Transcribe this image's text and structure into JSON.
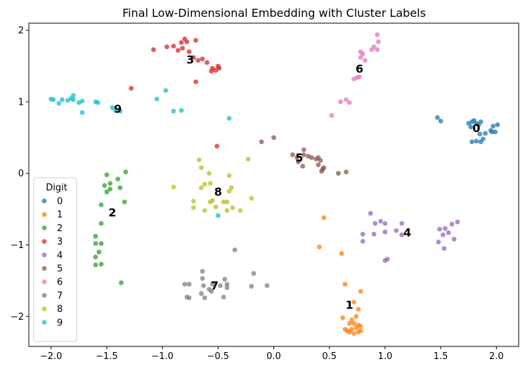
{
  "chart_data": {
    "type": "scatter",
    "title": "Final Low-Dimensional Embedding with Cluster Labels",
    "xlabel": "",
    "ylabel": "",
    "xlim": [
      -2.2,
      2.2
    ],
    "ylim": [
      -2.42,
      2.1
    ],
    "xticks": [
      -2.0,
      -1.5,
      -1.0,
      -0.5,
      0.0,
      0.5,
      1.0,
      1.5,
      2.0
    ],
    "yticks": [
      -2,
      -1,
      0,
      1,
      2
    ],
    "xtick_labels": [
      "−2.0",
      "−1.5",
      "−1.0",
      "−0.5",
      "0.0",
      "0.5",
      "1.0",
      "1.5",
      "2.0"
    ],
    "ytick_labels": [
      "−2",
      "−1",
      "0",
      "1",
      "2"
    ],
    "grid": false,
    "legend": {
      "title": "Digit",
      "placement": "lower-left",
      "entries": [
        "0",
        "1",
        "2",
        "3",
        "4",
        "5",
        "6",
        "7",
        "8",
        "9"
      ]
    },
    "series": [
      {
        "name": "0",
        "color": "#1f77b4",
        "label_pos": [
          1.82,
          0.62
        ],
        "points": [
          [
            1.47,
            0.78
          ],
          [
            1.5,
            0.73
          ],
          [
            1.75,
            0.7
          ],
          [
            1.77,
            0.65
          ],
          [
            1.78,
            0.72
          ],
          [
            1.8,
            0.74
          ],
          [
            1.82,
            0.7
          ],
          [
            1.84,
            0.68
          ],
          [
            1.86,
            0.72
          ],
          [
            1.78,
            0.44
          ],
          [
            1.82,
            0.45
          ],
          [
            1.86,
            0.44
          ],
          [
            1.88,
            0.48
          ],
          [
            1.9,
            0.56
          ],
          [
            1.95,
            0.6
          ],
          [
            1.97,
            0.66
          ],
          [
            1.99,
            0.58
          ],
          [
            2.01,
            0.68
          ],
          [
            1.96,
            0.58
          ],
          [
            1.85,
            0.55
          ]
        ]
      },
      {
        "name": "1",
        "color": "#ff7f0e",
        "label_pos": [
          0.68,
          -1.85
        ],
        "points": [
          [
            0.45,
            -0.62
          ],
          [
            0.41,
            -1.03
          ],
          [
            0.61,
            -1.12
          ],
          [
            0.64,
            -1.55
          ],
          [
            0.78,
            -1.65
          ],
          [
            0.72,
            -1.8
          ],
          [
            0.76,
            -1.9
          ],
          [
            0.62,
            -2.02
          ],
          [
            0.7,
            -2.05
          ],
          [
            0.74,
            -2.0
          ],
          [
            0.68,
            -2.1
          ],
          [
            0.72,
            -2.1
          ],
          [
            0.76,
            -2.12
          ],
          [
            0.64,
            -2.18
          ],
          [
            0.66,
            -2.2
          ],
          [
            0.7,
            -2.18
          ],
          [
            0.74,
            -2.16
          ],
          [
            0.78,
            -2.2
          ],
          [
            0.68,
            -2.22
          ],
          [
            0.72,
            -2.24
          ],
          [
            0.76,
            -2.22
          ],
          [
            0.78,
            -2.14
          ]
        ]
      },
      {
        "name": "2",
        "color": "#2ca02c",
        "label_pos": [
          -1.45,
          -0.56
        ],
        "points": [
          [
            -1.33,
            0.02
          ],
          [
            -1.4,
            -0.08
          ],
          [
            -1.5,
            -0.02
          ],
          [
            -1.38,
            -0.2
          ],
          [
            -1.47,
            -0.14
          ],
          [
            -1.52,
            -0.17
          ],
          [
            -1.47,
            -0.22
          ],
          [
            -1.5,
            -0.26
          ],
          [
            -1.34,
            -0.4
          ],
          [
            -1.55,
            -0.44
          ],
          [
            -1.55,
            -0.7
          ],
          [
            -1.6,
            -0.88
          ],
          [
            -1.55,
            -0.98
          ],
          [
            -1.6,
            -0.98
          ],
          [
            -1.57,
            -1.1
          ],
          [
            -1.6,
            -1.17
          ],
          [
            -1.6,
            -1.28
          ],
          [
            -1.55,
            -1.27
          ],
          [
            -1.37,
            -1.53
          ]
        ]
      },
      {
        "name": "3",
        "color": "#d62728",
        "label_pos": [
          -0.75,
          1.58
        ],
        "points": [
          [
            -0.83,
            1.83
          ],
          [
            -0.78,
            1.84
          ],
          [
            -0.7,
            1.86
          ],
          [
            -0.8,
            1.88
          ],
          [
            -0.9,
            1.78
          ],
          [
            -0.86,
            1.72
          ],
          [
            -0.82,
            1.75
          ],
          [
            -0.96,
            1.77
          ],
          [
            -1.08,
            1.73
          ],
          [
            -0.76,
            1.7
          ],
          [
            -0.72,
            1.62
          ],
          [
            -0.68,
            1.58
          ],
          [
            -0.64,
            1.6
          ],
          [
            -0.6,
            1.55
          ],
          [
            -0.55,
            1.47
          ],
          [
            -0.5,
            1.5
          ],
          [
            -0.52,
            1.44
          ],
          [
            -0.56,
            1.43
          ],
          [
            -0.49,
            1.47
          ],
          [
            -0.7,
            1.28
          ],
          [
            -1.28,
            1.19
          ],
          [
            -0.51,
            0.38
          ]
        ]
      },
      {
        "name": "4",
        "color": "#9467bd",
        "label_pos": [
          1.2,
          -0.84
        ],
        "points": [
          [
            0.87,
            -0.56
          ],
          [
            0.91,
            -0.7
          ],
          [
            0.96,
            -0.67
          ],
          [
            1.0,
            -0.7
          ],
          [
            0.8,
            -0.85
          ],
          [
            0.8,
            -0.95
          ],
          [
            0.9,
            -0.85
          ],
          [
            1.0,
            -0.82
          ],
          [
            1.1,
            -0.8
          ],
          [
            1.15,
            -0.7
          ],
          [
            1.15,
            -0.86
          ],
          [
            1.02,
            -1.2
          ],
          [
            1.0,
            -1.22
          ],
          [
            1.49,
            -0.78
          ],
          [
            1.54,
            -0.77
          ],
          [
            1.57,
            -0.83
          ],
          [
            1.6,
            -0.71
          ],
          [
            1.65,
            -0.68
          ],
          [
            1.52,
            -0.86
          ],
          [
            1.53,
            -1.05
          ],
          [
            1.62,
            -0.92
          ],
          [
            1.48,
            -0.96
          ]
        ]
      },
      {
        "name": "5",
        "color": "#8c564b",
        "label_pos": [
          0.23,
          0.21
        ],
        "points": [
          [
            0.0,
            0.5
          ],
          [
            -0.11,
            0.44
          ],
          [
            0.17,
            0.26
          ],
          [
            0.21,
            0.22
          ],
          [
            0.27,
            0.26
          ],
          [
            0.27,
            0.33
          ],
          [
            0.31,
            0.24
          ],
          [
            0.34,
            0.22
          ],
          [
            0.38,
            0.2
          ],
          [
            0.4,
            0.22
          ],
          [
            0.42,
            0.18
          ],
          [
            0.4,
            0.12
          ],
          [
            0.44,
            0.06
          ],
          [
            0.45,
            0.08
          ],
          [
            0.43,
            0.03
          ],
          [
            0.58,
            0.0
          ],
          [
            0.65,
            0.02
          ],
          [
            0.22,
            0.16
          ],
          [
            0.26,
            0.1
          ]
        ]
      },
      {
        "name": "6",
        "color": "#e377c2",
        "label_pos": [
          0.77,
          1.45
        ],
        "points": [
          [
            0.52,
            0.81
          ],
          [
            0.6,
            1.0
          ],
          [
            0.65,
            1.03
          ],
          [
            0.68,
            0.99
          ],
          [
            0.72,
            1.32
          ],
          [
            0.75,
            1.34
          ],
          [
            0.77,
            1.35
          ],
          [
            0.78,
            1.62
          ],
          [
            0.8,
            1.67
          ],
          [
            0.78,
            1.7
          ],
          [
            0.82,
            1.58
          ],
          [
            0.88,
            1.73
          ],
          [
            0.9,
            1.77
          ],
          [
            0.93,
            1.73
          ],
          [
            0.93,
            1.94
          ],
          [
            0.94,
            1.84
          ]
        ]
      },
      {
        "name": "7",
        "color": "#7f7f7f",
        "label_pos": [
          -0.53,
          -1.58
        ],
        "points": [
          [
            -0.8,
            -1.55
          ],
          [
            -0.76,
            -1.55
          ],
          [
            -0.78,
            -1.73
          ],
          [
            -0.76,
            -1.74
          ],
          [
            -0.64,
            -1.47
          ],
          [
            -0.63,
            -1.57
          ],
          [
            -0.65,
            -1.68
          ],
          [
            -0.62,
            -1.74
          ],
          [
            -0.64,
            -1.37
          ],
          [
            -0.55,
            -1.55
          ],
          [
            -0.48,
            -1.57
          ],
          [
            -0.44,
            -1.48
          ],
          [
            -0.42,
            -1.55
          ],
          [
            -0.42,
            -1.6
          ],
          [
            -0.45,
            -1.73
          ],
          [
            -0.35,
            -1.07
          ],
          [
            -0.2,
            -1.58
          ],
          [
            -0.18,
            -1.4
          ],
          [
            -0.06,
            -1.57
          ],
          [
            -0.58,
            -1.62
          ],
          [
            -0.56,
            -1.65
          ]
        ]
      },
      {
        "name": "8",
        "color": "#bcbd22",
        "label_pos": [
          -0.5,
          -0.27
        ],
        "points": [
          [
            -0.67,
            0.19
          ],
          [
            -0.65,
            0.08
          ],
          [
            -0.62,
            -0.15
          ],
          [
            -0.57,
            -0.14
          ],
          [
            -0.58,
            0.0
          ],
          [
            -0.65,
            -0.2
          ],
          [
            -0.9,
            -0.19
          ],
          [
            -0.72,
            -0.39
          ],
          [
            -0.72,
            -0.48
          ],
          [
            -0.62,
            -0.52
          ],
          [
            -0.57,
            -0.4
          ],
          [
            -0.52,
            -0.47
          ],
          [
            -0.45,
            -0.4
          ],
          [
            -0.42,
            -0.4
          ],
          [
            -0.42,
            -0.52
          ],
          [
            -0.37,
            -0.48
          ],
          [
            -0.4,
            -0.25
          ],
          [
            -0.38,
            -0.2
          ],
          [
            -0.4,
            -0.03
          ],
          [
            -0.3,
            -0.52
          ],
          [
            -0.23,
            0.2
          ],
          [
            -0.2,
            -0.35
          ],
          [
            -0.55,
            -0.38
          ]
        ]
      },
      {
        "name": "9",
        "color": "#17becf",
        "label_pos": [
          -1.4,
          0.89
        ],
        "points": [
          [
            -2.0,
            1.04
          ],
          [
            -1.98,
            1.03
          ],
          [
            -1.93,
            0.98
          ],
          [
            -1.9,
            1.03
          ],
          [
            -1.85,
            1.02
          ],
          [
            -1.82,
            1.05
          ],
          [
            -1.8,
            1.09
          ],
          [
            -1.8,
            1.03
          ],
          [
            -1.75,
            0.99
          ],
          [
            -1.72,
            1.01
          ],
          [
            -1.72,
            0.85
          ],
          [
            -1.6,
            1.0
          ],
          [
            -1.58,
            0.99
          ],
          [
            -1.45,
            0.92
          ],
          [
            -1.42,
            0.88
          ],
          [
            -1.38,
            0.87
          ],
          [
            -1.05,
            1.04
          ],
          [
            -0.97,
            1.16
          ],
          [
            -0.9,
            0.87
          ],
          [
            -0.83,
            0.88
          ],
          [
            -0.4,
            0.77
          ],
          [
            -0.5,
            -0.59
          ]
        ]
      }
    ]
  }
}
